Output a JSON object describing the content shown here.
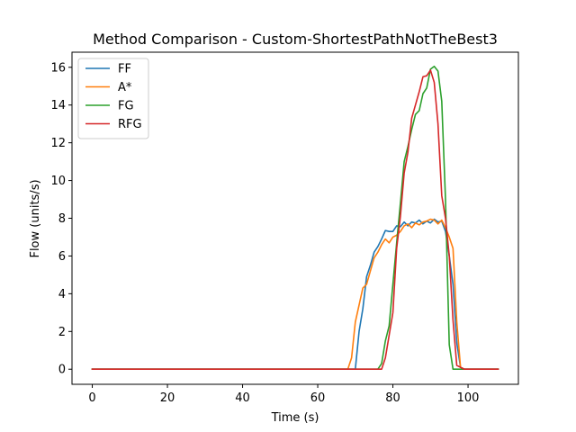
{
  "chart_data": {
    "type": "line",
    "title": "Method Comparison - Custom-ShortestPathNotTheBest3",
    "xlabel": "Time (s)",
    "ylabel": "Flow (units/s)",
    "xlim": [
      -5.4,
      113.4
    ],
    "ylim": [
      -0.8,
      16.8
    ],
    "xticks": [
      0,
      20,
      40,
      60,
      80,
      100
    ],
    "yticks": [
      0,
      2,
      4,
      6,
      8,
      10,
      12,
      14,
      16
    ],
    "grid": false,
    "legend_position": "top-left",
    "series": [
      {
        "name": "FF",
        "color": "#1f77b4",
        "points": [
          [
            0,
            0
          ],
          [
            69,
            0
          ],
          [
            70,
            0
          ],
          [
            71,
            2.0
          ],
          [
            72,
            3.2
          ],
          [
            73,
            4.9
          ],
          [
            74,
            5.5
          ],
          [
            75,
            6.2
          ],
          [
            76,
            6.5
          ],
          [
            77,
            6.9
          ],
          [
            78,
            7.35
          ],
          [
            79,
            7.3
          ],
          [
            80,
            7.3
          ],
          [
            81,
            7.6
          ],
          [
            82,
            7.55
          ],
          [
            83,
            7.8
          ],
          [
            84,
            7.6
          ],
          [
            85,
            7.8
          ],
          [
            86,
            7.75
          ],
          [
            87,
            7.9
          ],
          [
            88,
            7.7
          ],
          [
            89,
            7.85
          ],
          [
            90,
            7.75
          ],
          [
            91,
            7.95
          ],
          [
            92,
            7.8
          ],
          [
            93,
            7.85
          ],
          [
            94,
            7.3
          ],
          [
            95,
            6.0
          ],
          [
            96,
            4.5
          ],
          [
            97,
            1.4
          ],
          [
            98,
            0.1
          ],
          [
            99,
            0
          ],
          [
            108,
            0
          ]
        ]
      },
      {
        "name": "A*",
        "color": "#ff7f0e",
        "points": [
          [
            0,
            0
          ],
          [
            68,
            0
          ],
          [
            69,
            0.6
          ],
          [
            70,
            2.5
          ],
          [
            71,
            3.4
          ],
          [
            72,
            4.3
          ],
          [
            73,
            4.5
          ],
          [
            74,
            5.2
          ],
          [
            75,
            5.9
          ],
          [
            76,
            6.2
          ],
          [
            77,
            6.6
          ],
          [
            78,
            6.9
          ],
          [
            79,
            6.7
          ],
          [
            80,
            7.0
          ],
          [
            81,
            7.1
          ],
          [
            82,
            7.3
          ],
          [
            83,
            7.6
          ],
          [
            84,
            7.7
          ],
          [
            85,
            7.5
          ],
          [
            86,
            7.75
          ],
          [
            87,
            7.65
          ],
          [
            88,
            7.8
          ],
          [
            89,
            7.85
          ],
          [
            90,
            7.95
          ],
          [
            91,
            7.9
          ],
          [
            92,
            7.7
          ],
          [
            93,
            7.9
          ],
          [
            94,
            7.5
          ],
          [
            95,
            7.0
          ],
          [
            96,
            6.4
          ],
          [
            97,
            2.5
          ],
          [
            98,
            0.1
          ],
          [
            99,
            0
          ],
          [
            108,
            0
          ]
        ]
      },
      {
        "name": "FG",
        "color": "#2ca02c",
        "points": [
          [
            0,
            0
          ],
          [
            76,
            0
          ],
          [
            77,
            0.3
          ],
          [
            78,
            1.5
          ],
          [
            79,
            2.3
          ],
          [
            80,
            4.5
          ],
          [
            81,
            6.7
          ],
          [
            82,
            8.8
          ],
          [
            83,
            11.0
          ],
          [
            84,
            11.8
          ],
          [
            85,
            12.7
          ],
          [
            86,
            13.5
          ],
          [
            87,
            13.7
          ],
          [
            88,
            14.6
          ],
          [
            89,
            14.9
          ],
          [
            90,
            15.9
          ],
          [
            91,
            16.05
          ],
          [
            92,
            15.8
          ],
          [
            93,
            14.2
          ],
          [
            94,
            9.0
          ],
          [
            95,
            1.3
          ],
          [
            96,
            0
          ],
          [
            99,
            0
          ],
          [
            108,
            0
          ]
        ]
      },
      {
        "name": "RFG",
        "color": "#d62728",
        "points": [
          [
            0,
            0
          ],
          [
            77,
            0
          ],
          [
            78,
            0.6
          ],
          [
            79,
            1.8
          ],
          [
            80,
            3.0
          ],
          [
            81,
            6.4
          ],
          [
            82,
            8.1
          ],
          [
            83,
            10.4
          ],
          [
            84,
            11.5
          ],
          [
            85,
            13.3
          ],
          [
            86,
            14.0
          ],
          [
            87,
            14.7
          ],
          [
            88,
            15.5
          ],
          [
            89,
            15.55
          ],
          [
            90,
            15.85
          ],
          [
            91,
            15.2
          ],
          [
            92,
            13.0
          ],
          [
            93,
            9.2
          ],
          [
            94,
            8.0
          ],
          [
            95,
            6.0
          ],
          [
            96,
            2.6
          ],
          [
            97,
            0.2
          ],
          [
            98,
            0.1
          ],
          [
            99,
            0
          ],
          [
            108,
            0
          ]
        ]
      }
    ]
  }
}
